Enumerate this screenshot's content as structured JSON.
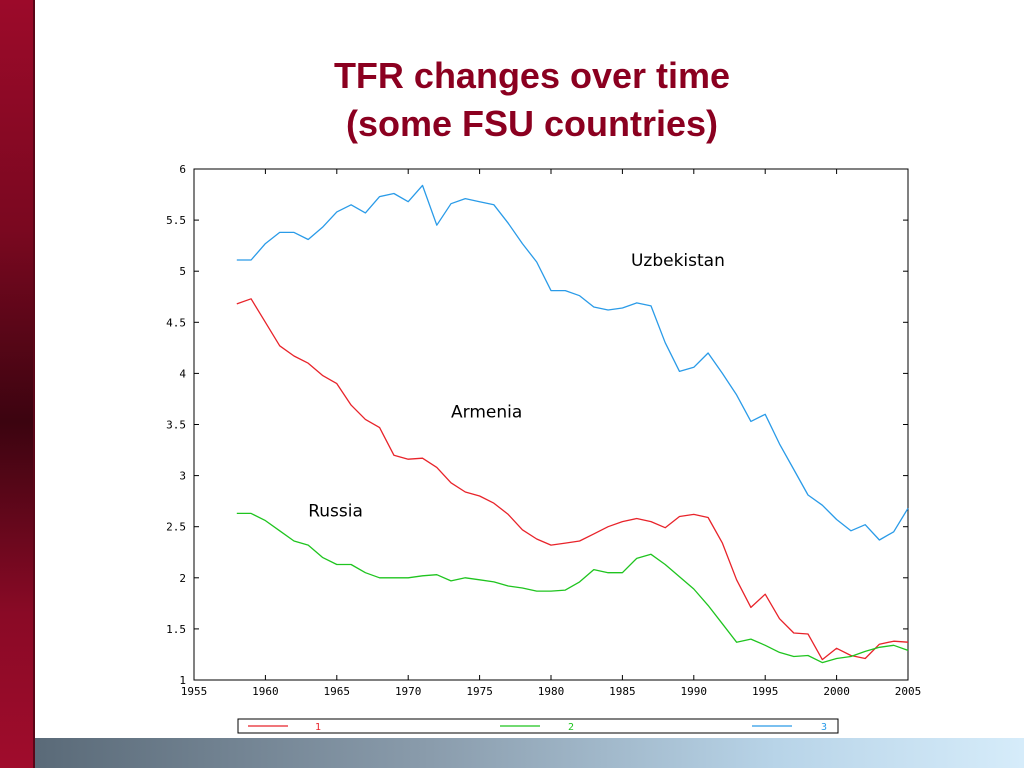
{
  "slide": {
    "title_line1": "TFR changes over time",
    "title_line2": "(some FSU countries)"
  },
  "colors": {
    "title": "#8b0020",
    "series_1": "#e8232a",
    "series_2": "#1fc41f",
    "series_3": "#2a9be8"
  },
  "chart_data": {
    "type": "line",
    "xlim": [
      1955,
      2005
    ],
    "ylim": [
      1,
      6
    ],
    "x_ticks": [
      "1955",
      "1960",
      "1965",
      "1970",
      "1975",
      "1980",
      "1985",
      "1990",
      "1995",
      "2000",
      "2005"
    ],
    "y_ticks": [
      "1",
      "1.5",
      "2",
      "2.5",
      "3",
      "3.5",
      "4",
      "4.5",
      "5",
      "5.5",
      "6"
    ],
    "annotations": [
      {
        "text": "Uzbekistan",
        "x": 1985.6,
        "y": 5.05
      },
      {
        "text": "Armenia",
        "x": 1973,
        "y": 3.57
      },
      {
        "text": "Russia",
        "x": 1963,
        "y": 2.6
      }
    ],
    "legend": [
      "1",
      "2",
      "3"
    ],
    "series": [
      {
        "name": "1",
        "label": "Armenia",
        "x": [
          1958,
          1959,
          1960,
          1961,
          1962,
          1963,
          1964,
          1965,
          1966,
          1967,
          1968,
          1969,
          1970,
          1971,
          1972,
          1973,
          1974,
          1975,
          1976,
          1977,
          1978,
          1979,
          1980,
          1981,
          1982,
          1983,
          1984,
          1985,
          1986,
          1987,
          1988,
          1989,
          1990,
          1991,
          1992,
          1993,
          1994,
          1995,
          1996,
          1997,
          1998,
          1999,
          2000,
          2001,
          2002,
          2003,
          2004,
          2005
        ],
        "values": [
          4.68,
          4.73,
          4.5,
          4.27,
          4.17,
          4.1,
          3.98,
          3.9,
          3.69,
          3.55,
          3.47,
          3.2,
          3.16,
          3.17,
          3.08,
          2.93,
          2.84,
          2.8,
          2.73,
          2.62,
          2.47,
          2.38,
          2.32,
          2.34,
          2.36,
          2.43,
          2.5,
          2.55,
          2.58,
          2.55,
          2.49,
          2.6,
          2.62,
          2.59,
          2.34,
          1.98,
          1.71,
          1.84,
          1.6,
          1.46,
          1.45,
          1.2,
          1.31,
          1.24,
          1.21,
          1.35,
          1.38,
          1.37
        ]
      },
      {
        "name": "2",
        "label": "Russia",
        "x": [
          1958,
          1959,
          1960,
          1961,
          1962,
          1963,
          1964,
          1965,
          1966,
          1967,
          1968,
          1969,
          1970,
          1971,
          1972,
          1973,
          1974,
          1975,
          1976,
          1977,
          1978,
          1979,
          1980,
          1981,
          1982,
          1983,
          1984,
          1985,
          1986,
          1987,
          1988,
          1989,
          1990,
          1991,
          1992,
          1993,
          1994,
          1995,
          1996,
          1997,
          1998,
          1999,
          2000,
          2001,
          2002,
          2003,
          2004,
          2005
        ],
        "values": [
          2.63,
          2.63,
          2.56,
          2.46,
          2.36,
          2.32,
          2.2,
          2.13,
          2.13,
          2.05,
          2.0,
          2.0,
          2.0,
          2.02,
          2.03,
          1.97,
          2.0,
          1.98,
          1.96,
          1.92,
          1.9,
          1.87,
          1.87,
          1.88,
          1.96,
          2.08,
          2.05,
          2.05,
          2.19,
          2.23,
          2.13,
          2.01,
          1.89,
          1.73,
          1.55,
          1.37,
          1.4,
          1.34,
          1.27,
          1.23,
          1.24,
          1.17,
          1.21,
          1.23,
          1.28,
          1.32,
          1.34,
          1.29
        ]
      },
      {
        "name": "3",
        "label": "Uzbekistan",
        "x": [
          1958,
          1959,
          1960,
          1961,
          1962,
          1963,
          1964,
          1965,
          1966,
          1967,
          1968,
          1969,
          1970,
          1971,
          1972,
          1973,
          1974,
          1975,
          1976,
          1977,
          1978,
          1979,
          1980,
          1981,
          1982,
          1983,
          1984,
          1985,
          1986,
          1987,
          1988,
          1989,
          1990,
          1991,
          1992,
          1993,
          1994,
          1995,
          1996,
          1997,
          1998,
          1999,
          2000,
          2001,
          2002,
          2003,
          2004,
          2005
        ],
        "values": [
          5.11,
          5.11,
          5.27,
          5.38,
          5.38,
          5.31,
          5.43,
          5.58,
          5.65,
          5.57,
          5.73,
          5.76,
          5.68,
          5.84,
          5.45,
          5.66,
          5.71,
          5.68,
          5.65,
          5.47,
          5.27,
          5.09,
          4.81,
          4.81,
          4.76,
          4.65,
          4.62,
          4.64,
          4.69,
          4.66,
          4.3,
          4.02,
          4.06,
          4.2,
          4.0,
          3.79,
          3.53,
          3.6,
          3.31,
          3.06,
          2.81,
          2.71,
          2.57,
          2.46,
          2.52,
          2.37,
          2.45,
          2.68
        ]
      }
    ]
  }
}
